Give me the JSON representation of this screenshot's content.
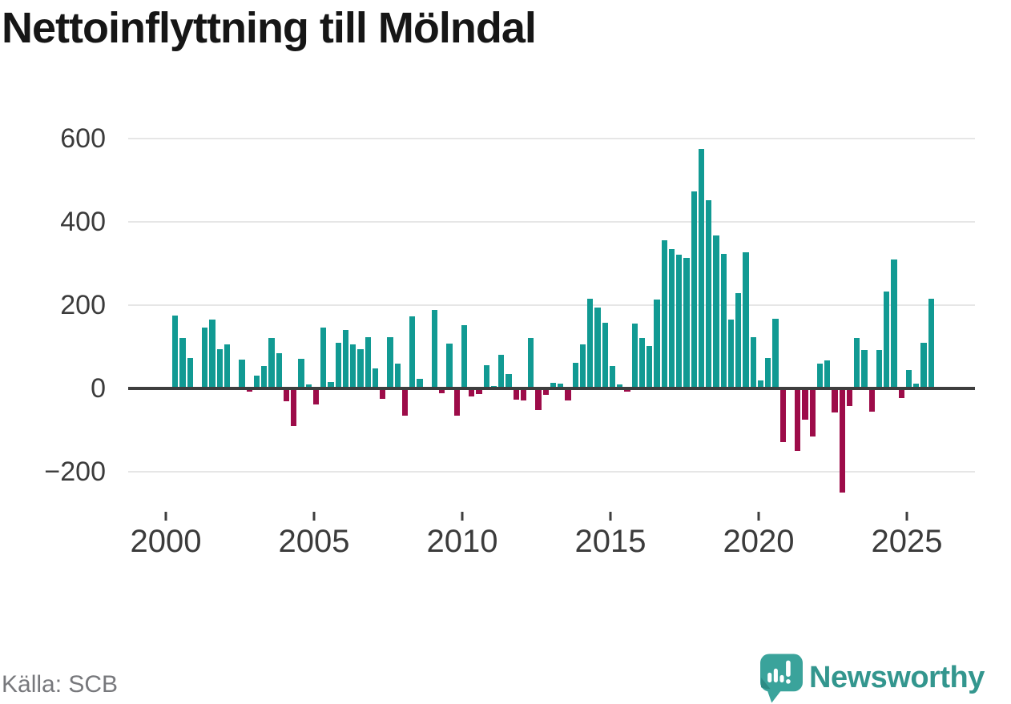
{
  "title": "Nettoinflyttning till Mölndal",
  "source": "Källa: SCB",
  "branding": {
    "name": "Newsworthy",
    "icon": "newsworthy-logo-icon",
    "icon_color": "#3aa39b",
    "icon_accent_color": "#2d8c85",
    "text_color": "#33968e"
  },
  "colors": {
    "bar_positive": "#119a93",
    "bar_negative": "#9d0c49",
    "axis": "#3e3e3e",
    "grid": "#e6e6e6",
    "label": "#3b3b3b"
  },
  "chart_data": {
    "type": "bar",
    "title": "Nettoinflyttning till Mölndal",
    "xlabel": "",
    "ylabel": "",
    "grid": "horizontal",
    "legend": "none",
    "ylim": [
      -265,
      650
    ],
    "y_ticks": [
      600,
      400,
      200,
      0,
      -200
    ],
    "y_tick_labels": [
      "600",
      "400",
      "200",
      "0",
      "−200"
    ],
    "x_tick_labels": [
      "2000",
      "2005",
      "2010",
      "2015",
      "2020",
      "2025"
    ],
    "frequency": "quarterly",
    "values": [
      [
        "2000Q2",
        175
      ],
      [
        "2000Q3",
        121
      ],
      [
        "2000Q4",
        73
      ],
      [
        "2001Q1",
        0
      ],
      [
        "2001Q2",
        147
      ],
      [
        "2001Q3",
        165
      ],
      [
        "2001Q4",
        95
      ],
      [
        "2002Q1",
        106
      ],
      [
        "2002Q2",
        0
      ],
      [
        "2002Q3",
        70
      ],
      [
        "2002Q4",
        -8
      ],
      [
        "2003Q1",
        31
      ],
      [
        "2003Q2",
        54
      ],
      [
        "2003Q3",
        121
      ],
      [
        "2003Q4",
        85
      ],
      [
        "2004Q1",
        -30
      ],
      [
        "2004Q2",
        -90
      ],
      [
        "2004Q3",
        72
      ],
      [
        "2004Q4",
        10
      ],
      [
        "2005Q1",
        -38
      ],
      [
        "2005Q2",
        147
      ],
      [
        "2005Q3",
        16
      ],
      [
        "2005Q4",
        110
      ],
      [
        "2006Q1",
        141
      ],
      [
        "2006Q2",
        106
      ],
      [
        "2006Q3",
        95
      ],
      [
        "2006Q4",
        124
      ],
      [
        "2007Q1",
        48
      ],
      [
        "2007Q2",
        -25
      ],
      [
        "2007Q3",
        123
      ],
      [
        "2007Q4",
        59
      ],
      [
        "2008Q1",
        -66
      ],
      [
        "2008Q2",
        174
      ],
      [
        "2008Q3",
        24
      ],
      [
        "2008Q4",
        0
      ],
      [
        "2009Q1",
        189
      ],
      [
        "2009Q2",
        -11
      ],
      [
        "2009Q3",
        108
      ],
      [
        "2009Q4",
        -66
      ],
      [
        "2010Q1",
        152
      ],
      [
        "2010Q2",
        -19
      ],
      [
        "2010Q3",
        -13
      ],
      [
        "2010Q4",
        55
      ],
      [
        "2011Q1",
        6
      ],
      [
        "2011Q2",
        81
      ],
      [
        "2011Q3",
        34
      ],
      [
        "2011Q4",
        -26
      ],
      [
        "2012Q1",
        -29
      ],
      [
        "2012Q2",
        121
      ],
      [
        "2012Q3",
        -52
      ],
      [
        "2012Q4",
        -15
      ],
      [
        "2013Q1",
        14
      ],
      [
        "2013Q2",
        12
      ],
      [
        "2013Q3",
        -29
      ],
      [
        "2013Q4",
        61
      ],
      [
        "2014Q1",
        106
      ],
      [
        "2014Q2",
        215
      ],
      [
        "2014Q3",
        194
      ],
      [
        "2014Q4",
        158
      ],
      [
        "2015Q1",
        54
      ],
      [
        "2015Q2",
        10
      ],
      [
        "2015Q3",
        -7
      ],
      [
        "2015Q4",
        156
      ],
      [
        "2016Q1",
        121
      ],
      [
        "2016Q2",
        101
      ],
      [
        "2016Q3",
        213
      ],
      [
        "2016Q4",
        356
      ],
      [
        "2017Q1",
        335
      ],
      [
        "2017Q2",
        322
      ],
      [
        "2017Q3",
        313
      ],
      [
        "2017Q4",
        473
      ],
      [
        "2018Q1",
        575
      ],
      [
        "2018Q2",
        452
      ],
      [
        "2018Q3",
        367
      ],
      [
        "2018Q4",
        323
      ],
      [
        "2019Q1",
        165
      ],
      [
        "2019Q2",
        229
      ],
      [
        "2019Q3",
        326
      ],
      [
        "2019Q4",
        124
      ],
      [
        "2020Q1",
        19
      ],
      [
        "2020Q2",
        73
      ],
      [
        "2020Q3",
        167
      ],
      [
        "2020Q4",
        -128
      ],
      [
        "2021Q1",
        0
      ],
      [
        "2021Q2",
        -150
      ],
      [
        "2021Q3",
        -75
      ],
      [
        "2021Q4",
        -115
      ],
      [
        "2022Q1",
        60
      ],
      [
        "2022Q2",
        67
      ],
      [
        "2022Q3",
        -58
      ],
      [
        "2022Q4",
        -250
      ],
      [
        "2023Q1",
        -42
      ],
      [
        "2023Q2",
        122
      ],
      [
        "2023Q3",
        93
      ],
      [
        "2023Q4",
        -56
      ],
      [
        "2024Q1",
        92
      ],
      [
        "2024Q2",
        233
      ],
      [
        "2024Q3",
        310
      ],
      [
        "2024Q4",
        -24
      ],
      [
        "2025Q1",
        44
      ],
      [
        "2025Q2",
        12
      ],
      [
        "2025Q3",
        110
      ],
      [
        "2025Q4",
        215
      ]
    ]
  }
}
